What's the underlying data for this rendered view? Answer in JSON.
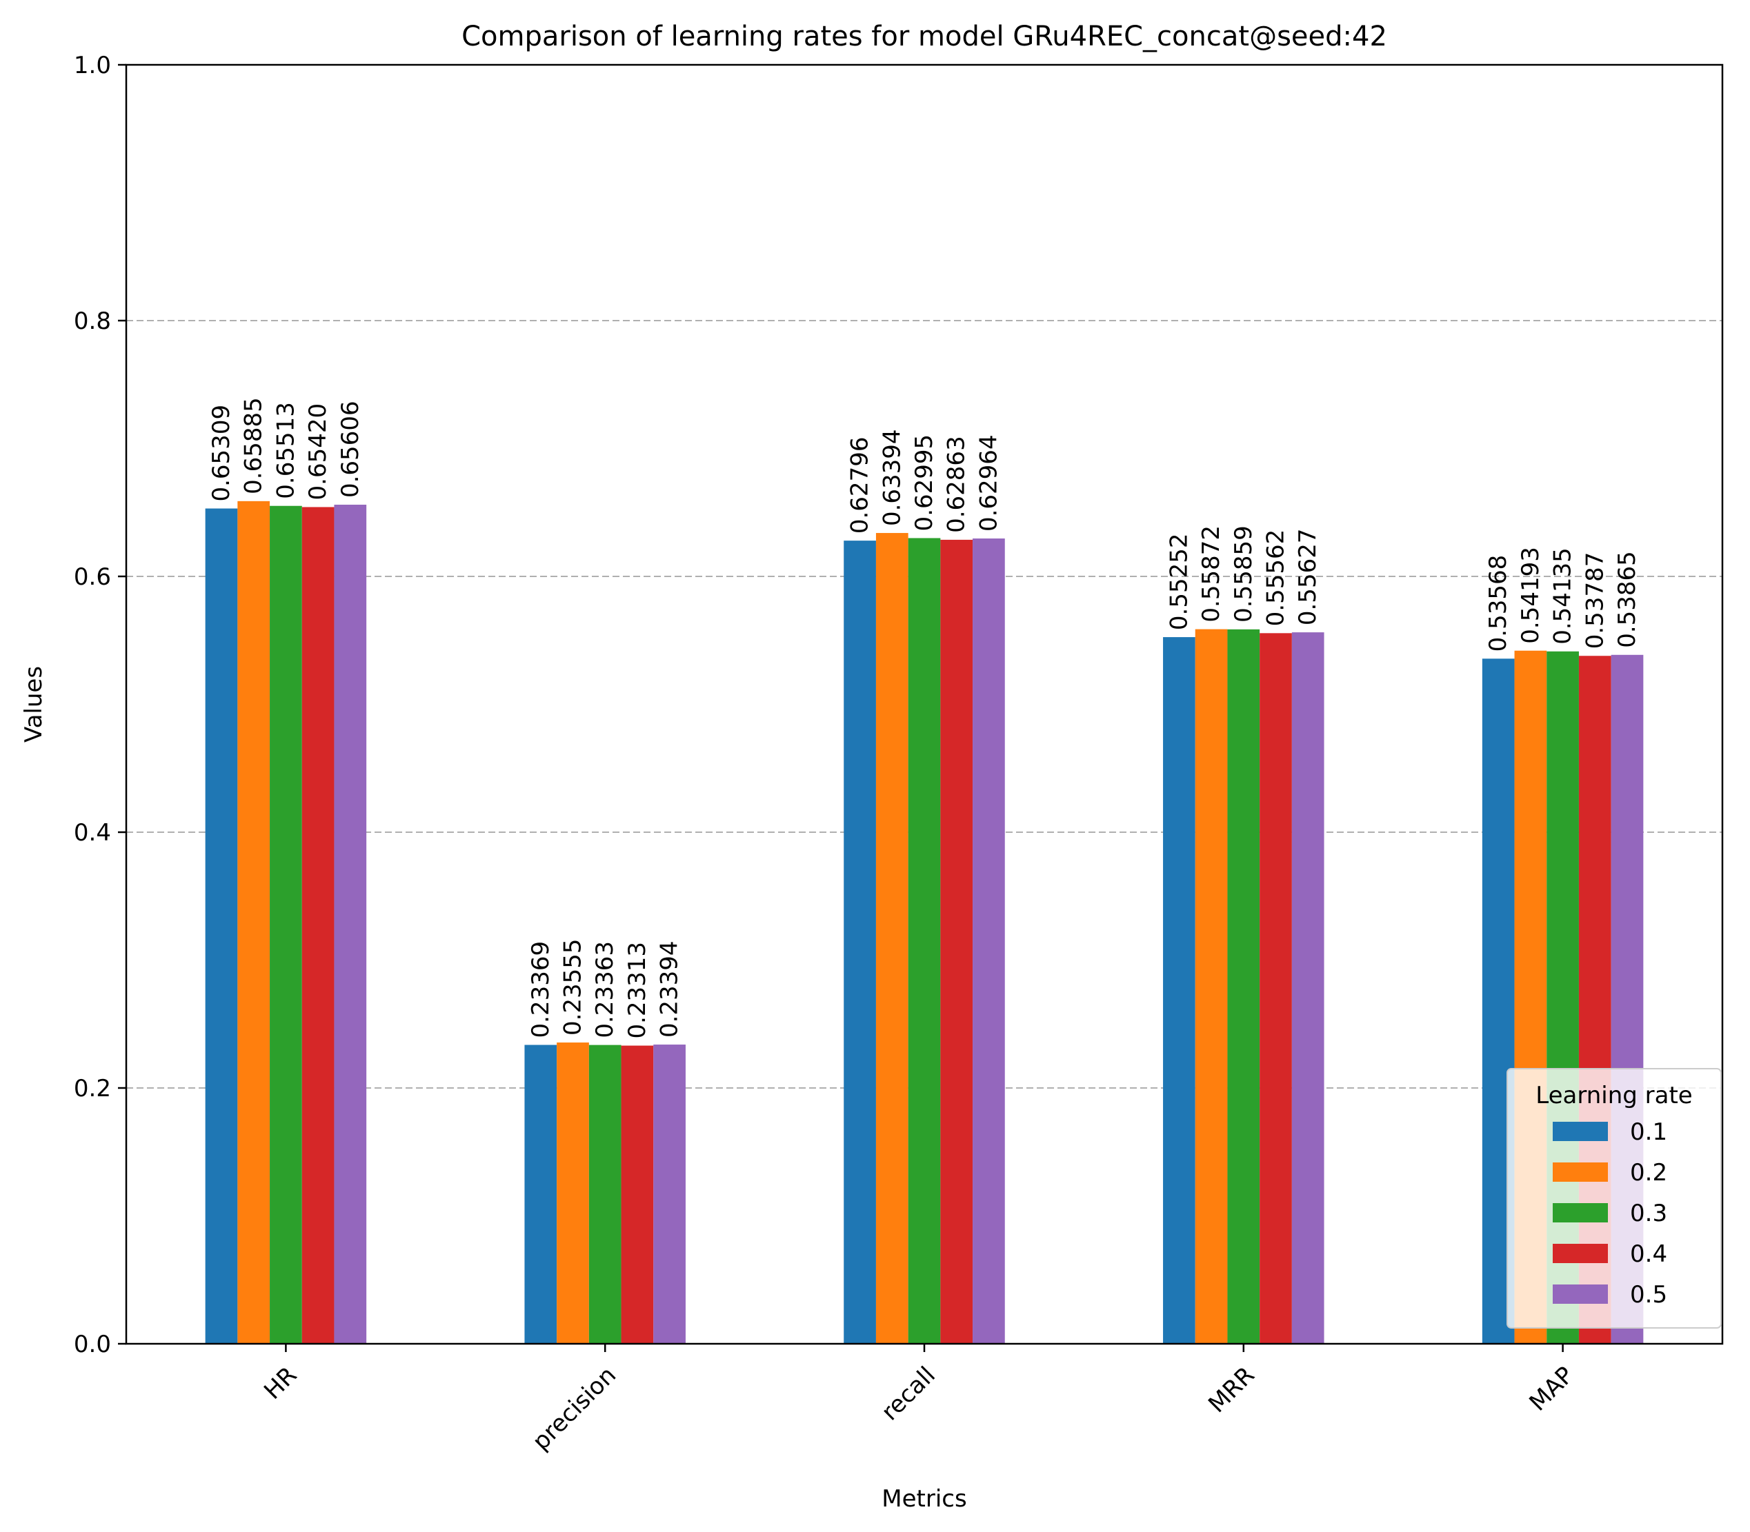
{
  "chart_data": {
    "type": "bar",
    "title": "Comparison of learning rates for model GRu4REC_concat@seed:42",
    "xlabel": "Metrics",
    "ylabel": "Values",
    "ylim": [
      0,
      1.0
    ],
    "yticks": [
      "0.0",
      "0.2",
      "0.4",
      "0.6",
      "0.8",
      "1.0"
    ],
    "grid": "y dashed",
    "categories": [
      "HR",
      "precision",
      "recall",
      "MRR",
      "MAP"
    ],
    "legend": {
      "title": "Learning rate",
      "placement": "lower right"
    },
    "series": [
      {
        "name": "0.1",
        "color": "#1f77b4",
        "values": [
          0.65309,
          0.23369,
          0.62796,
          0.55252,
          0.53568
        ],
        "labels": [
          "0.65309",
          "0.23369",
          "0.62796",
          "0.55252",
          "0.53568"
        ]
      },
      {
        "name": "0.2",
        "color": "#ff7f0e",
        "values": [
          0.65885,
          0.23555,
          0.63394,
          0.55872,
          0.54193
        ],
        "labels": [
          "0.65885",
          "0.23555",
          "0.63394",
          "0.55872",
          "0.54193"
        ]
      },
      {
        "name": "0.3",
        "color": "#2ca02c",
        "values": [
          0.65513,
          0.23363,
          0.62995,
          0.55859,
          0.54135
        ],
        "labels": [
          "0.65513",
          "0.23363",
          "0.62995",
          "0.55859",
          "0.54135"
        ]
      },
      {
        "name": "0.4",
        "color": "#d62728",
        "values": [
          0.6542,
          0.23313,
          0.62863,
          0.55562,
          0.53787
        ],
        "labels": [
          "0.65420",
          "0.23313",
          "0.62863",
          "0.55562",
          "0.53787"
        ]
      },
      {
        "name": "0.5",
        "color": "#9467bd",
        "values": [
          0.65606,
          0.23394,
          0.62964,
          0.55627,
          0.53865
        ],
        "labels": [
          "0.65606",
          "0.23394",
          "0.62964",
          "0.55627",
          "0.53865"
        ]
      }
    ]
  }
}
